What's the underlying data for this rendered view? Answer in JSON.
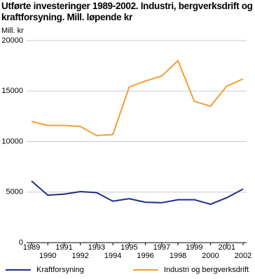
{
  "chart_data": {
    "type": "line",
    "title": "Utførte investeringer 1989-2002. Industri, bergverksdrift og kraftforsyning. Mill. løpende kr",
    "y_label": "Mill. kr",
    "x": [
      1989,
      1990,
      1991,
      1992,
      1993,
      1994,
      1995,
      1996,
      1997,
      1998,
      1999,
      2000,
      2001,
      2002
    ],
    "series": [
      {
        "name": "Kraftforsyning",
        "color": "#1f2d86",
        "values": [
          6100,
          4700,
          4800,
          5050,
          4950,
          4100,
          4350,
          4000,
          3950,
          4250,
          4250,
          3800,
          4450,
          5300
        ]
      },
      {
        "name": "Industri og bergverksdrift",
        "color": "#f0a030",
        "values": [
          12000,
          11600,
          11600,
          11500,
          10600,
          10700,
          15400,
          16000,
          16500,
          18000,
          14000,
          13500,
          15500,
          16200
        ]
      }
    ],
    "xlim": [
      1989,
      2002
    ],
    "ylim": [
      0,
      20000
    ],
    "yticks": [
      0,
      5000,
      10000,
      15000,
      20000
    ],
    "grid": true
  }
}
